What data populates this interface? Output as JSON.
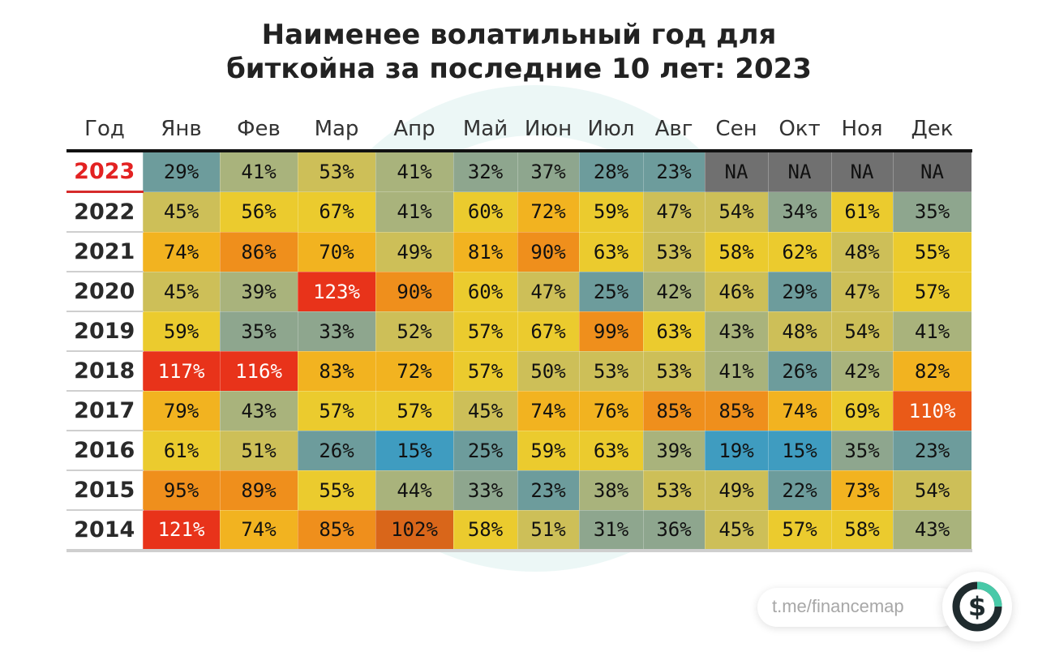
{
  "colors": {
    "red": "#e8331a",
    "orange_red": "#ea5a18",
    "burnt": "#d9661a",
    "orange": "#ef8f1c",
    "amber": "#f2b320",
    "yellow": "#ebcb2e",
    "olive": "#cdbf58",
    "sage": "#a9b37c",
    "grey_green": "#8ea68e",
    "teal": "#6d9c9c",
    "blue": "#3f9cc0",
    "na": "#707070"
  },
  "chart_data": {
    "type": "heatmap",
    "title": "Наименее волатильный год для биткойна за последние 10 лет: 2023",
    "title_lines": [
      "Наименее волатильный год для",
      "биткойна за последние 10 лет: 2023"
    ],
    "year_header": "Год",
    "months": [
      "Янв",
      "Фев",
      "Мар",
      "Апр",
      "Май",
      "Июн",
      "Июл",
      "Авг",
      "Сен",
      "Окт",
      "Ноя",
      "Дек"
    ],
    "rows": [
      {
        "year": "2023",
        "values": [
          "29%",
          "41%",
          "53%",
          "41%",
          "32%",
          "37%",
          "28%",
          "23%",
          "NA",
          "NA",
          "NA",
          "NA"
        ]
      },
      {
        "year": "2022",
        "values": [
          "45%",
          "56%",
          "67%",
          "41%",
          "60%",
          "72%",
          "59%",
          "47%",
          "54%",
          "34%",
          "61%",
          "35%"
        ]
      },
      {
        "year": "2021",
        "values": [
          "74%",
          "86%",
          "70%",
          "49%",
          "81%",
          "90%",
          "63%",
          "53%",
          "58%",
          "62%",
          "48%",
          "55%"
        ]
      },
      {
        "year": "2020",
        "values": [
          "45%",
          "39%",
          "123%",
          "90%",
          "60%",
          "47%",
          "25%",
          "42%",
          "46%",
          "29%",
          "47%",
          "57%"
        ]
      },
      {
        "year": "2019",
        "values": [
          "59%",
          "35%",
          "33%",
          "52%",
          "57%",
          "67%",
          "99%",
          "63%",
          "43%",
          "48%",
          "54%",
          "41%"
        ]
      },
      {
        "year": "2018",
        "values": [
          "117%",
          "116%",
          "83%",
          "72%",
          "57%",
          "50%",
          "53%",
          "53%",
          "41%",
          "26%",
          "42%",
          "82%"
        ]
      },
      {
        "year": "2017",
        "values": [
          "79%",
          "43%",
          "57%",
          "57%",
          "45%",
          "74%",
          "76%",
          "85%",
          "85%",
          "74%",
          "69%",
          "110%"
        ]
      },
      {
        "year": "2016",
        "values": [
          "61%",
          "51%",
          "26%",
          "15%",
          "25%",
          "59%",
          "63%",
          "39%",
          "19%",
          "15%",
          "35%",
          "23%"
        ]
      },
      {
        "year": "2015",
        "values": [
          "95%",
          "89%",
          "55%",
          "44%",
          "33%",
          "23%",
          "38%",
          "53%",
          "49%",
          "22%",
          "73%",
          "54%"
        ]
      },
      {
        "year": "2014",
        "values": [
          "121%",
          "74%",
          "85%",
          "102%",
          "58%",
          "51%",
          "31%",
          "36%",
          "45%",
          "57%",
          "58%",
          "43%"
        ]
      }
    ],
    "highlight_year": "2023"
  },
  "footer": {
    "link_text": "t.me/financemap",
    "logo_icon": "dollar-circle-icon"
  }
}
